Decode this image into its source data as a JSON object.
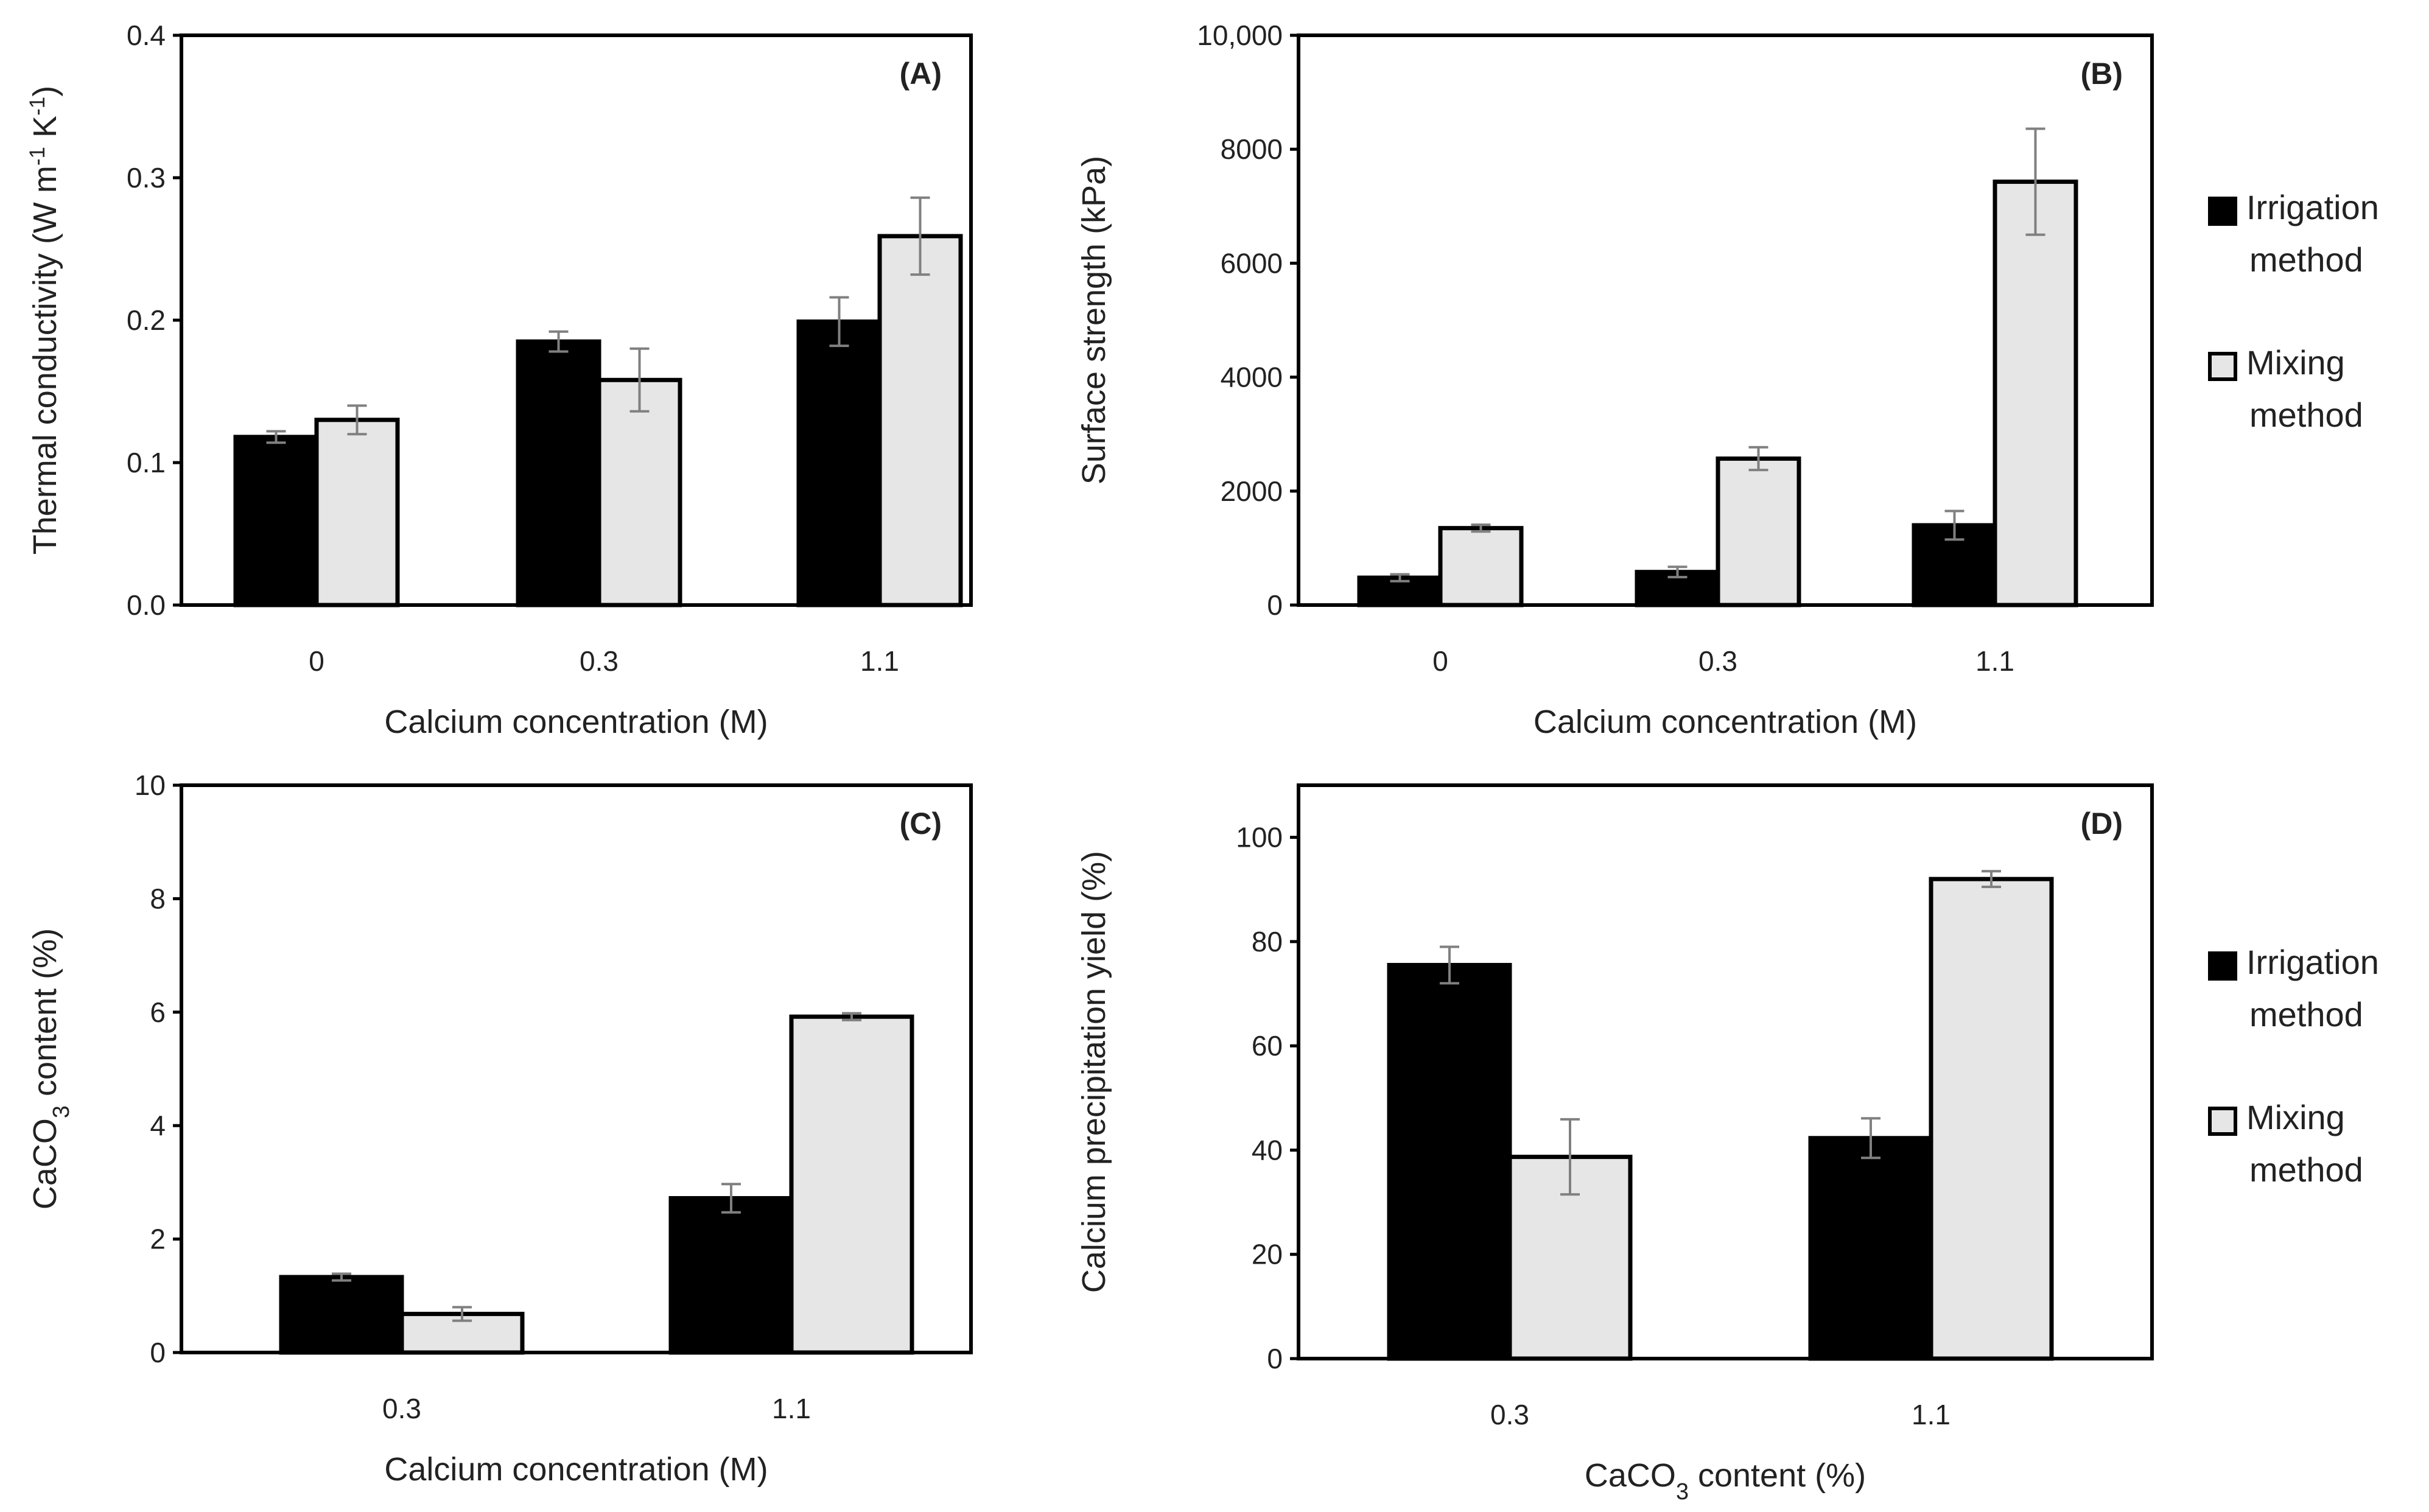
{
  "colors": {
    "irrigation_fill": "#000000",
    "mixing_fill": "#e6e6e6",
    "frame": "#000000",
    "error_bar": "#808080"
  },
  "legends": [
    {
      "items": [
        "Irrigation method",
        "Mixing method"
      ]
    },
    {
      "items": [
        "Irrigation method",
        "Mixing method"
      ]
    }
  ],
  "chart_data": [
    {
      "type": "bar",
      "panel": "(A)",
      "categories": [
        "0",
        "0.3",
        "1.1"
      ],
      "series": [
        {
          "name": "Irrigation method",
          "values": [
            0.118,
            0.185,
            0.199
          ],
          "errors": [
            0.004,
            0.007,
            0.017
          ]
        },
        {
          "name": "Mixing method",
          "values": [
            0.13,
            0.158,
            0.259
          ],
          "errors": [
            0.01,
            0.022,
            0.027
          ]
        }
      ],
      "xlabel": "Calcium concentration (M)",
      "ylabel": "Thermal conductivity (W m-1 K-1)",
      "ylim": [
        0,
        0.4
      ],
      "yticks": [
        "0.0",
        "0.1",
        "0.2",
        "0.3",
        "0.4"
      ]
    },
    {
      "type": "bar",
      "panel": "(B)",
      "categories": [
        "0",
        "0.3",
        "1.1"
      ],
      "series": [
        {
          "name": "Irrigation method",
          "values": [
            480,
            580,
            1400
          ],
          "errors": [
            60,
            90,
            250
          ]
        },
        {
          "name": "Mixing method",
          "values": [
            1350,
            2570,
            7430
          ],
          "errors": [
            60,
            200,
            930
          ]
        }
      ],
      "xlabel": "Calcium concentration (M)",
      "ylabel": "Surface strength (kPa)",
      "ylim": [
        0,
        10000
      ],
      "yticks": [
        "0",
        "2000",
        "4000",
        "6000",
        "8000",
        "10,000"
      ]
    },
    {
      "type": "bar",
      "panel": "(C)",
      "categories": [
        "0.3",
        "1.1"
      ],
      "series": [
        {
          "name": "Irrigation method",
          "values": [
            1.33,
            2.72
          ],
          "errors": [
            0.06,
            0.25
          ]
        },
        {
          "name": "Mixing method",
          "values": [
            0.68,
            5.92
          ],
          "errors": [
            0.12,
            0.06
          ]
        }
      ],
      "xlabel": "Calcium concentration (M)",
      "ylabel": "CaCO3 content (%)",
      "ylim": [
        0,
        10
      ],
      "yticks": [
        "0",
        "2",
        "4",
        "6",
        "8",
        "10"
      ]
    },
    {
      "type": "bar",
      "panel": "(D)",
      "categories": [
        "0.3",
        "1.1"
      ],
      "series": [
        {
          "name": "Irrigation method",
          "values": [
            75.5,
            42.3
          ],
          "errors": [
            3.5,
            3.8
          ]
        },
        {
          "name": "Mixing method",
          "values": [
            38.7,
            92.0
          ],
          "errors": [
            7.2,
            1.5
          ]
        }
      ],
      "xlabel": "CaCO3 content (%)",
      "ylabel": "Calcium precipitation yield (%)",
      "ylim": [
        0,
        110
      ],
      "yticks": [
        "0",
        "20",
        "40",
        "60",
        "80",
        "100"
      ]
    }
  ]
}
